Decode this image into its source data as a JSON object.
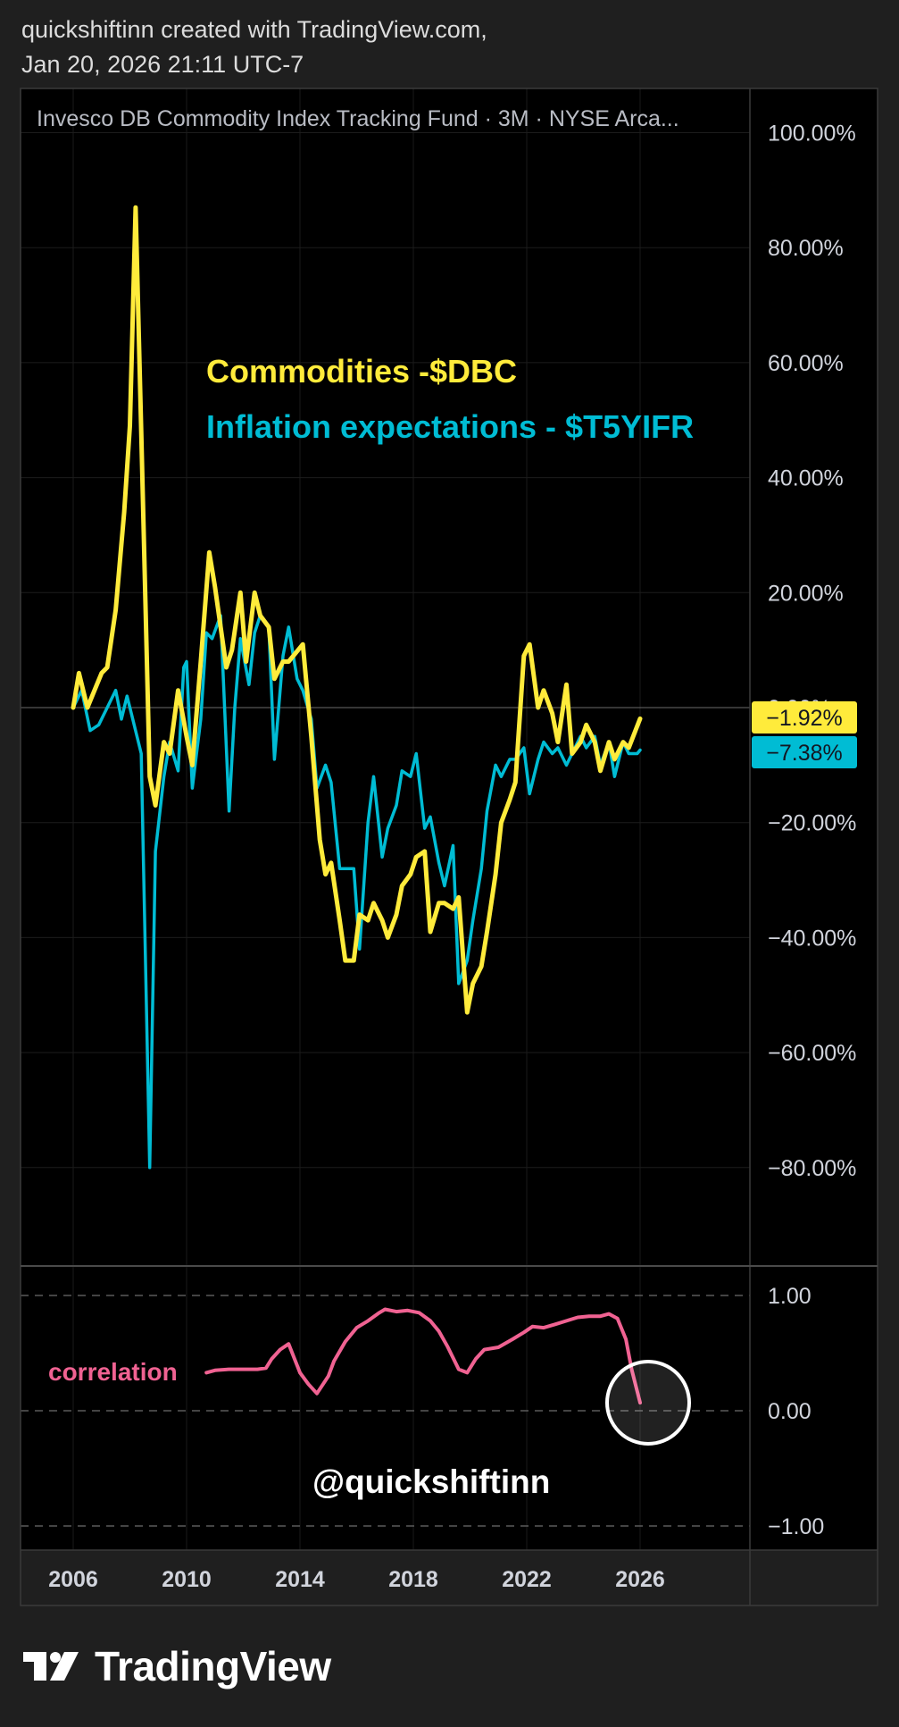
{
  "header": {
    "line1": "quickshiftinn created with TradingView.com,",
    "line2": "Jan 20, 2026 21:11 UTC-7"
  },
  "footer": {
    "brand": "TradingView",
    "logo_icon": "tradingview-logo-icon"
  },
  "colors": {
    "background": "#1f1f1f",
    "plot_bg": "#000000",
    "dbc": "#ffeb3b",
    "t5yifr": "#00bcd4",
    "correlation": "#f06292",
    "axis_text": "#d1d4dc"
  },
  "chart_data": [
    {
      "type": "line",
      "title": "Invesco DB Commodity Index Tracking Fund · 3M · NYSE Arca...",
      "annotations": [
        "Commodities -$DBC",
        "Inflation expectations - $T5YIFR"
      ],
      "y_ticks": [
        "100.00%",
        "80.00%",
        "60.00%",
        "40.00%",
        "20.00%",
        "0.00%",
        "−20.00%",
        "−40.00%",
        "−60.00%",
        "−80.00%"
      ],
      "ylim": [
        -100,
        100
      ],
      "y_unit": "%",
      "xlim": [
        2006,
        2026
      ],
      "x_ticks": [
        "2006",
        "2010",
        "2014",
        "2018",
        "2022",
        "2026"
      ],
      "grid": true,
      "series": [
        {
          "key": "dbc",
          "last_label": "−1.92%",
          "last_value": -1.92,
          "points": [
            [
              2006,
              0
            ],
            [
              2006.2,
              6
            ],
            [
              2006.5,
              0
            ],
            [
              2007,
              6
            ],
            [
              2007.2,
              7
            ],
            [
              2007.5,
              17
            ],
            [
              2007.8,
              34
            ],
            [
              2008,
              49
            ],
            [
              2008.2,
              87
            ],
            [
              2008.4,
              48
            ],
            [
              2008.7,
              -12
            ],
            [
              2008.9,
              -17
            ],
            [
              2009.2,
              -6
            ],
            [
              2009.4,
              -8
            ],
            [
              2009.7,
              3
            ],
            [
              2010,
              -5
            ],
            [
              2010.2,
              -10
            ],
            [
              2010.5,
              8
            ],
            [
              2010.8,
              27
            ],
            [
              2011,
              21
            ],
            [
              2011.4,
              7
            ],
            [
              2011.6,
              10
            ],
            [
              2011.9,
              20
            ],
            [
              2012.1,
              8
            ],
            [
              2012.4,
              20
            ],
            [
              2012.6,
              16
            ],
            [
              2012.9,
              14
            ],
            [
              2013.1,
              5
            ],
            [
              2013.4,
              8
            ],
            [
              2013.6,
              8
            ],
            [
              2014.1,
              11
            ],
            [
              2014.4,
              -5
            ],
            [
              2014.7,
              -23
            ],
            [
              2014.9,
              -29
            ],
            [
              2015.1,
              -27
            ],
            [
              2015.4,
              -37
            ],
            [
              2015.6,
              -44
            ],
            [
              2015.9,
              -44
            ],
            [
              2016.1,
              -36
            ],
            [
              2016.4,
              -37
            ],
            [
              2016.6,
              -34
            ],
            [
              2016.9,
              -37
            ],
            [
              2017.1,
              -40
            ],
            [
              2017.4,
              -36
            ],
            [
              2017.6,
              -31
            ],
            [
              2017.9,
              -29
            ],
            [
              2018.1,
              -26
            ],
            [
              2018.4,
              -25
            ],
            [
              2018.6,
              -39
            ],
            [
              2018.9,
              -34
            ],
            [
              2019.1,
              -34
            ],
            [
              2019.4,
              -35
            ],
            [
              2019.6,
              -33
            ],
            [
              2019.9,
              -53
            ],
            [
              2020.1,
              -48
            ],
            [
              2020.4,
              -45
            ],
            [
              2020.6,
              -39
            ],
            [
              2020.9,
              -29
            ],
            [
              2021.1,
              -20
            ],
            [
              2021.4,
              -16
            ],
            [
              2021.6,
              -13
            ],
            [
              2021.9,
              9
            ],
            [
              2022.1,
              11
            ],
            [
              2022.4,
              0
            ],
            [
              2022.6,
              3
            ],
            [
              2022.9,
              -1
            ],
            [
              2023.1,
              -6
            ],
            [
              2023.4,
              4
            ],
            [
              2023.6,
              -8
            ],
            [
              2023.9,
              -6
            ],
            [
              2024.1,
              -3
            ],
            [
              2024.4,
              -6
            ],
            [
              2024.6,
              -11
            ],
            [
              2024.9,
              -6
            ],
            [
              2025.1,
              -9
            ],
            [
              2025.4,
              -6
            ],
            [
              2025.6,
              -7
            ],
            [
              2026,
              -1.92
            ]
          ]
        },
        {
          "key": "t5yifr",
          "last_label": "−7.38%",
          "last_value": -7.38,
          "points": [
            [
              2006,
              0
            ],
            [
              2006.3,
              3
            ],
            [
              2006.6,
              -4
            ],
            [
              2006.9,
              -3
            ],
            [
              2007.2,
              0
            ],
            [
              2007.5,
              3
            ],
            [
              2007.7,
              -2
            ],
            [
              2007.9,
              2
            ],
            [
              2008.1,
              -2
            ],
            [
              2008.4,
              -8
            ],
            [
              2008.7,
              -80
            ],
            [
              2008.9,
              -25
            ],
            [
              2009.2,
              -12
            ],
            [
              2009.4,
              -6
            ],
            [
              2009.7,
              -11
            ],
            [
              2009.9,
              7
            ],
            [
              2010,
              8
            ],
            [
              2010.2,
              -14
            ],
            [
              2010.5,
              -2
            ],
            [
              2010.7,
              13
            ],
            [
              2010.9,
              12
            ],
            [
              2011.2,
              16
            ],
            [
              2011.5,
              -18
            ],
            [
              2011.7,
              0
            ],
            [
              2011.9,
              12
            ],
            [
              2012.2,
              4
            ],
            [
              2012.4,
              13
            ],
            [
              2012.6,
              16
            ],
            [
              2012.9,
              14
            ],
            [
              2013.1,
              -9
            ],
            [
              2013.4,
              9
            ],
            [
              2013.6,
              14
            ],
            [
              2013.9,
              5
            ],
            [
              2014.1,
              3
            ],
            [
              2014.4,
              -2
            ],
            [
              2014.6,
              -14
            ],
            [
              2014.9,
              -10
            ],
            [
              2015.1,
              -13
            ],
            [
              2015.4,
              -28
            ],
            [
              2015.6,
              -28
            ],
            [
              2015.9,
              -28
            ],
            [
              2016.1,
              -42
            ],
            [
              2016.4,
              -20
            ],
            [
              2016.6,
              -12
            ],
            [
              2016.9,
              -26
            ],
            [
              2017.1,
              -21
            ],
            [
              2017.4,
              -17
            ],
            [
              2017.6,
              -11
            ],
            [
              2017.9,
              -12
            ],
            [
              2018.1,
              -8
            ],
            [
              2018.4,
              -21
            ],
            [
              2018.6,
              -19
            ],
            [
              2018.9,
              -27
            ],
            [
              2019.1,
              -31
            ],
            [
              2019.4,
              -24
            ],
            [
              2019.6,
              -48
            ],
            [
              2019.9,
              -44
            ],
            [
              2020.1,
              -37
            ],
            [
              2020.4,
              -28
            ],
            [
              2020.6,
              -18
            ],
            [
              2020.9,
              -10
            ],
            [
              2021.1,
              -12
            ],
            [
              2021.4,
              -9
            ],
            [
              2021.6,
              -9
            ],
            [
              2021.9,
              -7
            ],
            [
              2022.1,
              -15
            ],
            [
              2022.4,
              -9
            ],
            [
              2022.6,
              -6
            ],
            [
              2022.9,
              -8
            ],
            [
              2023.1,
              -7
            ],
            [
              2023.4,
              -10
            ],
            [
              2023.6,
              -8
            ],
            [
              2023.9,
              -5
            ],
            [
              2024.1,
              -7
            ],
            [
              2024.4,
              -5
            ],
            [
              2024.6,
              -10
            ],
            [
              2024.9,
              -6
            ],
            [
              2025.1,
              -12
            ],
            [
              2025.4,
              -6
            ],
            [
              2025.6,
              -8
            ],
            [
              2025.9,
              -8
            ],
            [
              2026,
              -7.38
            ]
          ]
        }
      ]
    },
    {
      "type": "line",
      "title": "",
      "annotations": [
        "correlation",
        "@quickshiftinn"
      ],
      "y_ticks": [
        "1.00",
        "0.00",
        "−1.00"
      ],
      "ylim": [
        -1,
        1
      ],
      "xlim": [
        2006,
        2026
      ],
      "grid": "dashed at 1, 0, -1",
      "highlight": "circle around latest value",
      "series": [
        {
          "key": "correlation",
          "points": [
            [
              2010.7,
              0.33
            ],
            [
              2011,
              0.35
            ],
            [
              2011.5,
              0.36
            ],
            [
              2012,
              0.36
            ],
            [
              2012.5,
              0.36
            ],
            [
              2012.8,
              0.37
            ],
            [
              2013,
              0.45
            ],
            [
              2013.3,
              0.53
            ],
            [
              2013.6,
              0.58
            ],
            [
              2014,
              0.33
            ],
            [
              2014.3,
              0.23
            ],
            [
              2014.6,
              0.15
            ],
            [
              2015,
              0.3
            ],
            [
              2015.2,
              0.43
            ],
            [
              2015.6,
              0.6
            ],
            [
              2016,
              0.72
            ],
            [
              2016.4,
              0.78
            ],
            [
              2016.8,
              0.85
            ],
            [
              2017,
              0.88
            ],
            [
              2017.4,
              0.86
            ],
            [
              2017.8,
              0.87
            ],
            [
              2018.2,
              0.85
            ],
            [
              2018.6,
              0.78
            ],
            [
              2018.9,
              0.69
            ],
            [
              2019.2,
              0.56
            ],
            [
              2019.6,
              0.36
            ],
            [
              2019.9,
              0.33
            ],
            [
              2020.2,
              0.45
            ],
            [
              2020.5,
              0.53
            ],
            [
              2021,
              0.55
            ],
            [
              2021.5,
              0.62
            ],
            [
              2021.9,
              0.68
            ],
            [
              2022.2,
              0.73
            ],
            [
              2022.6,
              0.72
            ],
            [
              2023,
              0.75
            ],
            [
              2023.4,
              0.78
            ],
            [
              2023.8,
              0.81
            ],
            [
              2024.2,
              0.82
            ],
            [
              2024.6,
              0.82
            ],
            [
              2024.9,
              0.84
            ],
            [
              2025.2,
              0.8
            ],
            [
              2025.5,
              0.62
            ],
            [
              2025.7,
              0.36
            ],
            [
              2026,
              0.07
            ]
          ]
        }
      ]
    }
  ]
}
